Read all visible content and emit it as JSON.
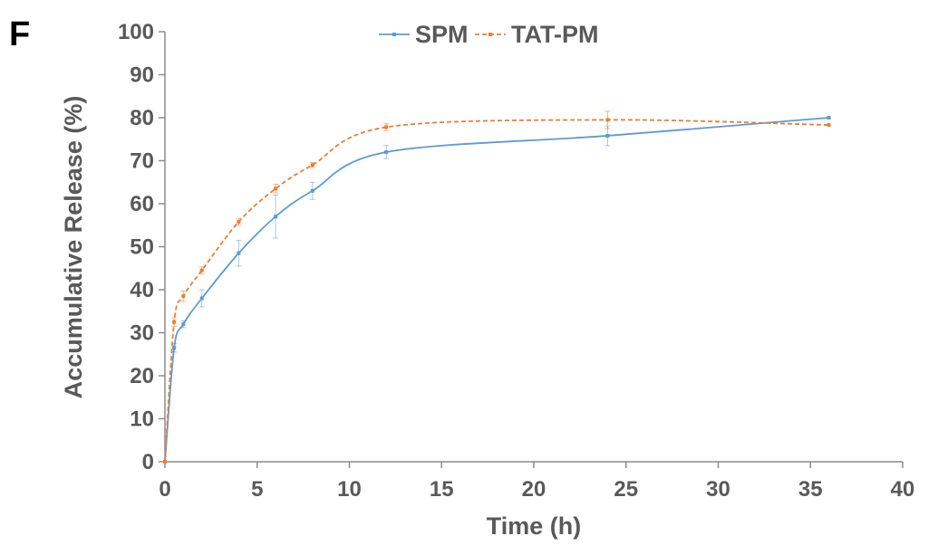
{
  "panel_label": "F",
  "chart_data": {
    "type": "line",
    "xlabel": "Time (h)",
    "ylabel": "Accumulative Release (%)",
    "xlim": [
      0,
      40
    ],
    "ylim": [
      0,
      100
    ],
    "xticks": [
      0,
      5,
      10,
      15,
      20,
      25,
      30,
      35,
      40
    ],
    "yticks": [
      0,
      10,
      20,
      30,
      40,
      50,
      60,
      70,
      80,
      90,
      100
    ],
    "grid": false,
    "legend_position": "top-center",
    "smooth": true,
    "series": [
      {
        "name": "SPM",
        "color": "#5B9BD5",
        "line_style": "solid",
        "x": [
          0,
          0.5,
          1,
          2,
          4,
          6,
          8,
          12,
          24,
          36
        ],
        "y": [
          0,
          26.5,
          32,
          38,
          48.5,
          57,
          63,
          72,
          75.8,
          80
        ],
        "error": [
          0,
          1.0,
          0.8,
          2.0,
          3.0,
          5.0,
          2.0,
          1.5,
          2.3,
          0
        ]
      },
      {
        "name": "TAT-PM",
        "color": "#ED7D31",
        "line_style": "dashed",
        "x": [
          0,
          0.5,
          1,
          2,
          4,
          6,
          8,
          12,
          24,
          36
        ],
        "y": [
          0,
          32.5,
          38.5,
          44.5,
          55.8,
          63.5,
          69,
          77.8,
          79.5,
          78.3
        ],
        "error": [
          0,
          1.0,
          1.2,
          0.8,
          0.8,
          1.0,
          0.6,
          0.8,
          2.0,
          0
        ]
      }
    ]
  }
}
